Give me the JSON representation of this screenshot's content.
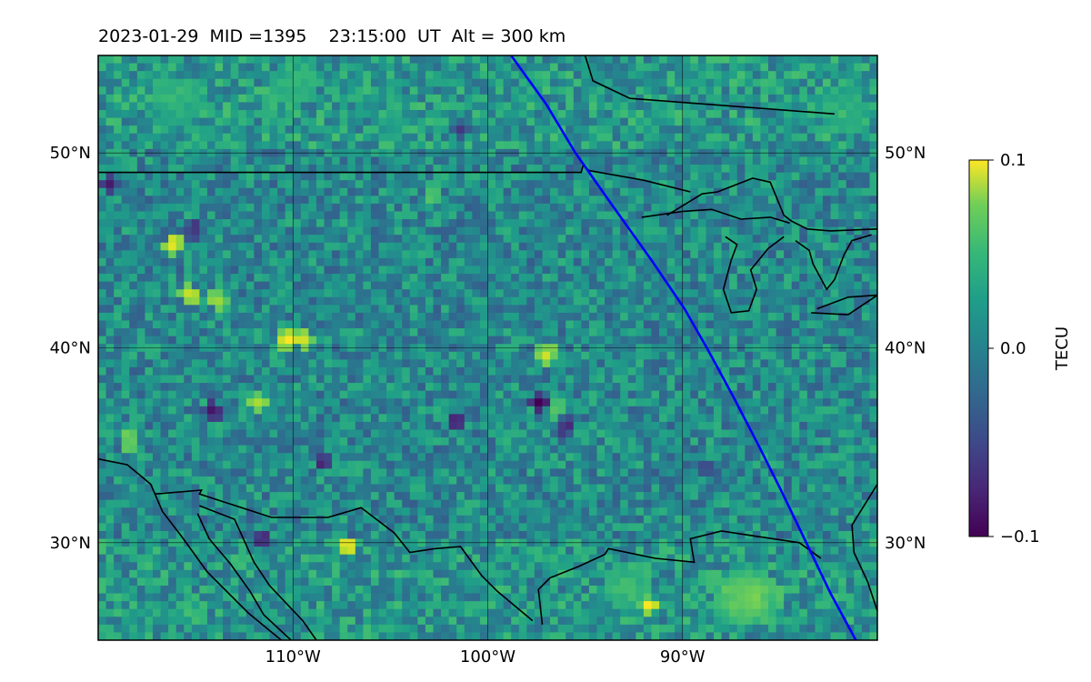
{
  "header": {
    "date": "2023-01-29",
    "mid": "MID =1395",
    "time": "23:15:00  UT",
    "alt": "Alt = 300 km"
  },
  "chart_data": {
    "type": "heatmap",
    "projection": "map",
    "xlim": [
      -120,
      -80
    ],
    "ylim": [
      25,
      55
    ],
    "x_ticks": [
      {
        "value": -110,
        "label": "110°W"
      },
      {
        "value": -100,
        "label": "100°W"
      },
      {
        "value": -90,
        "label": "90°W"
      }
    ],
    "y_ticks": [
      {
        "value": 30,
        "label": "30°N"
      },
      {
        "value": 40,
        "label": "40°N"
      },
      {
        "value": 50,
        "label": "50°N"
      }
    ],
    "grid": true,
    "colormap": "viridis",
    "colorbar": {
      "label": "TECU",
      "vmin": -0.1,
      "vmax": 0.1,
      "ticks": [
        {
          "value": 0.1,
          "label": "0.1"
        },
        {
          "value": 0.0,
          "label": "0.0"
        },
        {
          "value": -0.1,
          "label": "−0.1"
        }
      ]
    },
    "terminator_line": {
      "color": "#0000ff",
      "points": [
        [
          -98.8,
          55
        ],
        [
          -97,
          52.5
        ],
        [
          -95.5,
          50
        ],
        [
          -93.6,
          47.3
        ],
        [
          -91.6,
          44.5
        ],
        [
          -89.9,
          42
        ],
        [
          -88.7,
          39.9
        ],
        [
          -87.4,
          37.5
        ],
        [
          -86.1,
          35
        ],
        [
          -84.9,
          32.6
        ],
        [
          -83.6,
          29.9
        ],
        [
          -82.4,
          27.4
        ],
        [
          -81.1,
          25
        ]
      ]
    },
    "hotspots": [
      {
        "lon": -116.3,
        "lat": 45.1,
        "value": 0.1
      },
      {
        "lon": -114.1,
        "lat": 42.3,
        "value": 0.08
      },
      {
        "lon": -115.5,
        "lat": 42.5,
        "value": 0.09
      },
      {
        "lon": -110.5,
        "lat": 40.2,
        "value": 0.1
      },
      {
        "lon": -109.7,
        "lat": 40.3,
        "value": 0.09
      },
      {
        "lon": -107.4,
        "lat": 29.6,
        "value": 0.1
      },
      {
        "lon": -92.0,
        "lat": 26.6,
        "value": 0.1
      },
      {
        "lon": -97.2,
        "lat": 39.5,
        "value": 0.09
      },
      {
        "lon": -118.6,
        "lat": 35.0,
        "value": 0.07
      },
      {
        "lon": -112.0,
        "lat": 37.0,
        "value": 0.08
      },
      {
        "lon": -96.6,
        "lat": 36.5,
        "value": 0.06
      },
      {
        "lon": -103.0,
        "lat": 47.7,
        "value": 0.05
      }
    ],
    "coldspots": [
      {
        "lon": -119.6,
        "lat": 48.3,
        "value": -0.08
      },
      {
        "lon": -114.3,
        "lat": 36.6,
        "value": -0.09
      },
      {
        "lon": -101.9,
        "lat": 36.1,
        "value": -0.09
      },
      {
        "lon": -97.5,
        "lat": 37.0,
        "value": -0.1
      },
      {
        "lon": -96.2,
        "lat": 35.8,
        "value": -0.08
      },
      {
        "lon": -111.8,
        "lat": 30.0,
        "value": -0.09
      },
      {
        "lon": -108.7,
        "lat": 33.9,
        "value": -0.08
      },
      {
        "lon": -101.5,
        "lat": 51.0,
        "value": -0.07
      },
      {
        "lon": -115.3,
        "lat": 45.8,
        "value": -0.08
      },
      {
        "lon": -89.0,
        "lat": 33.5,
        "value": -0.06
      }
    ],
    "warm_regions": [
      {
        "lon": -87.4,
        "lat": 27.0,
        "value": 0.05
      },
      {
        "lon": -86.3,
        "lat": 27.0,
        "value": 0.05
      },
      {
        "lon": -93.0,
        "lat": 27.5,
        "value": 0.04
      },
      {
        "lon": -116.0,
        "lat": 52.5,
        "value": 0.03
      },
      {
        "lon": -110.0,
        "lat": 53.5,
        "value": 0.03
      },
      {
        "lon": -82.0,
        "lat": 52.0,
        "value": 0.03
      }
    ],
    "coastlines": [
      {
        "name": "canada-us-border",
        "points": [
          [
            -120,
            49
          ],
          [
            -95.2,
            49
          ],
          [
            -95.1,
            49.4
          ],
          [
            -94.8,
            49.1
          ],
          [
            -92,
            48.6
          ],
          [
            -89.6,
            48
          ]
        ]
      },
      {
        "name": "great-lakes-outline",
        "points": [
          [
            -90.8,
            46.8
          ],
          [
            -89,
            47.9
          ],
          [
            -88.2,
            48
          ],
          [
            -86.4,
            48.7
          ],
          [
            -85.5,
            48.5
          ],
          [
            -84.8,
            46.8
          ],
          [
            -84.4,
            46.5
          ],
          [
            -83.6,
            46.1
          ],
          [
            -82.4,
            46
          ],
          [
            -80,
            46.1
          ]
        ]
      },
      {
        "name": "lake-superior-south",
        "points": [
          [
            -92.1,
            46.7
          ],
          [
            -90,
            47
          ],
          [
            -88.5,
            47.1
          ],
          [
            -87,
            46.6
          ],
          [
            -85.5,
            46.7
          ],
          [
            -84.5,
            46.4
          ]
        ]
      },
      {
        "name": "lake-michigan",
        "points": [
          [
            -87.8,
            45.7
          ],
          [
            -87.2,
            45.3
          ],
          [
            -87.5,
            44.5
          ],
          [
            -87.9,
            43
          ],
          [
            -87.5,
            41.8
          ],
          [
            -86.6,
            41.9
          ],
          [
            -86.2,
            43
          ],
          [
            -86.5,
            44
          ],
          [
            -85.6,
            45.1
          ],
          [
            -84.8,
            45.7
          ]
        ]
      },
      {
        "name": "lake-huron",
        "points": [
          [
            -84.2,
            45.5
          ],
          [
            -83.5,
            45
          ],
          [
            -83.3,
            44.3
          ],
          [
            -82.6,
            43
          ],
          [
            -82.2,
            43.5
          ],
          [
            -81.7,
            44.8
          ],
          [
            -81.3,
            45.5
          ],
          [
            -80.3,
            45.8
          ]
        ]
      },
      {
        "name": "lake-erie",
        "points": [
          [
            -83.4,
            41.8
          ],
          [
            -81.5,
            41.7
          ],
          [
            -80.0,
            42.7
          ],
          [
            -81.5,
            42.6
          ],
          [
            -83.1,
            42.0
          ]
        ]
      },
      {
        "name": "hudson-bay-edge",
        "points": [
          [
            -95.0,
            55
          ],
          [
            -94.6,
            53.7
          ],
          [
            -92.7,
            52.8
          ],
          [
            -82.2,
            52.0
          ]
        ]
      },
      {
        "name": "mexico-us-border",
        "points": [
          [
            -117.1,
            32.5
          ],
          [
            -114.7,
            32.7
          ],
          [
            -114.8,
            32.5
          ],
          [
            -111.1,
            31.3
          ],
          [
            -108.2,
            31.3
          ],
          [
            -106.5,
            31.8
          ],
          [
            -104.8,
            30.5
          ],
          [
            -104.0,
            29.5
          ],
          [
            -102.7,
            29.7
          ],
          [
            -101.4,
            29.8
          ],
          [
            -100.3,
            28.3
          ],
          [
            -99.5,
            27.5
          ],
          [
            -97.7,
            26.0
          ]
        ]
      },
      {
        "name": "gulf-coast-texas",
        "points": [
          [
            -97.2,
            25.8
          ],
          [
            -97.4,
            27.6
          ],
          [
            -96.8,
            28.2
          ],
          [
            -95.3,
            28.8
          ],
          [
            -94.0,
            29.4
          ],
          [
            -93.8,
            29.7
          ],
          [
            -91.4,
            29.2
          ],
          [
            -89.4,
            29.0
          ],
          [
            -89.6,
            30.2
          ],
          [
            -88.0,
            30.6
          ],
          [
            -86.0,
            30.3
          ],
          [
            -84.0,
            30.0
          ],
          [
            -82.9,
            29.2
          ]
        ]
      },
      {
        "name": "baja-coast",
        "points": [
          [
            -120,
            34.3
          ],
          [
            -118.5,
            34.0
          ],
          [
            -117.3,
            33.0
          ],
          [
            -116.7,
            31.6
          ],
          [
            -115.7,
            30.3
          ],
          [
            -114.4,
            28.5
          ],
          [
            -112.3,
            26.4
          ],
          [
            -110.6,
            25.0
          ]
        ]
      },
      {
        "name": "gulf-of-california",
        "points": [
          [
            -114.9,
            31.5
          ],
          [
            -114.3,
            30.2
          ],
          [
            -113.2,
            28.9
          ],
          [
            -112.2,
            27.5
          ],
          [
            -111.5,
            26.3
          ],
          [
            -110.1,
            25.0
          ]
        ]
      },
      {
        "name": "mexico-west-coast",
        "points": [
          [
            -114.8,
            31.9
          ],
          [
            -113.0,
            31.2
          ],
          [
            -112.0,
            29.0
          ],
          [
            -111.2,
            27.8
          ],
          [
            -109.5,
            26.0
          ],
          [
            -108.8,
            25.0
          ]
        ]
      },
      {
        "name": "florida-east",
        "points": [
          [
            -80.0,
            33.0
          ],
          [
            -81.3,
            30.9
          ],
          [
            -81.2,
            29.5
          ],
          [
            -80.5,
            28.0
          ],
          [
            -80.0,
            26.5
          ]
        ]
      }
    ]
  }
}
